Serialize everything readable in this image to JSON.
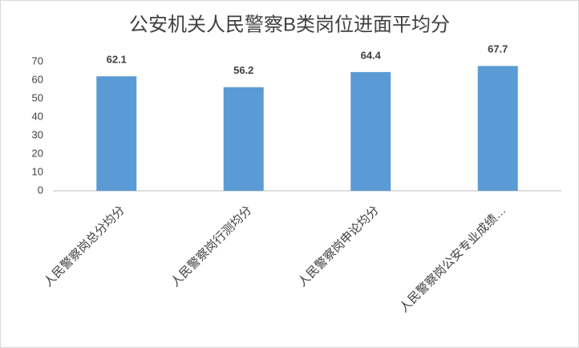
{
  "chart_data": {
    "type": "bar",
    "title": "公安机关人民警察B类岗位进面平均分",
    "categories": [
      "人民警察岗总分均分",
      "人民警察岗行测均分",
      "人民警察岗申论均分",
      "人民警察岗公安专业成绩…"
    ],
    "values": [
      62.1,
      56.2,
      64.4,
      67.7
    ],
    "color": "#5b9bd5",
    "ylim": [
      0,
      70
    ],
    "yticks": [
      0,
      10,
      20,
      30,
      40,
      50,
      60,
      70
    ],
    "grid": false,
    "data_labels": true
  }
}
